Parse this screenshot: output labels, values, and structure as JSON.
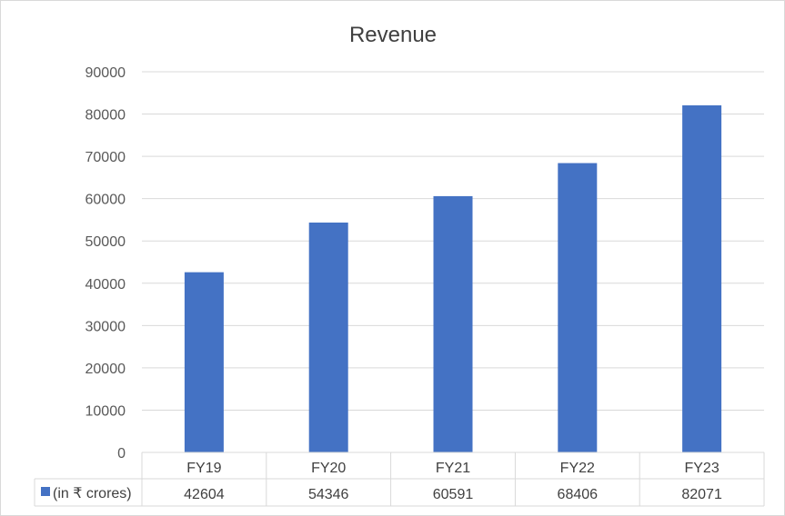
{
  "chart_data": {
    "type": "bar",
    "title": "Revenue",
    "xlabel": "",
    "ylabel": "",
    "categories": [
      "FY19",
      "FY20",
      "FY21",
      "FY22",
      "FY23"
    ],
    "series": [
      {
        "name": "(in ₹ crores)",
        "values": [
          42604,
          54346,
          60591,
          68406,
          82071
        ],
        "color": "#4472c4"
      }
    ],
    "ylim": [
      0,
      90000
    ],
    "yticks": [
      "0",
      "10000",
      "20000",
      "30000",
      "40000",
      "50000",
      "60000",
      "70000",
      "80000",
      "90000"
    ],
    "grid": true,
    "legend": "data-table",
    "data_table": {
      "row_label": "(in ₹ crores)",
      "cells": [
        "42604",
        "54346",
        "60591",
        "68406",
        "82071"
      ]
    }
  }
}
